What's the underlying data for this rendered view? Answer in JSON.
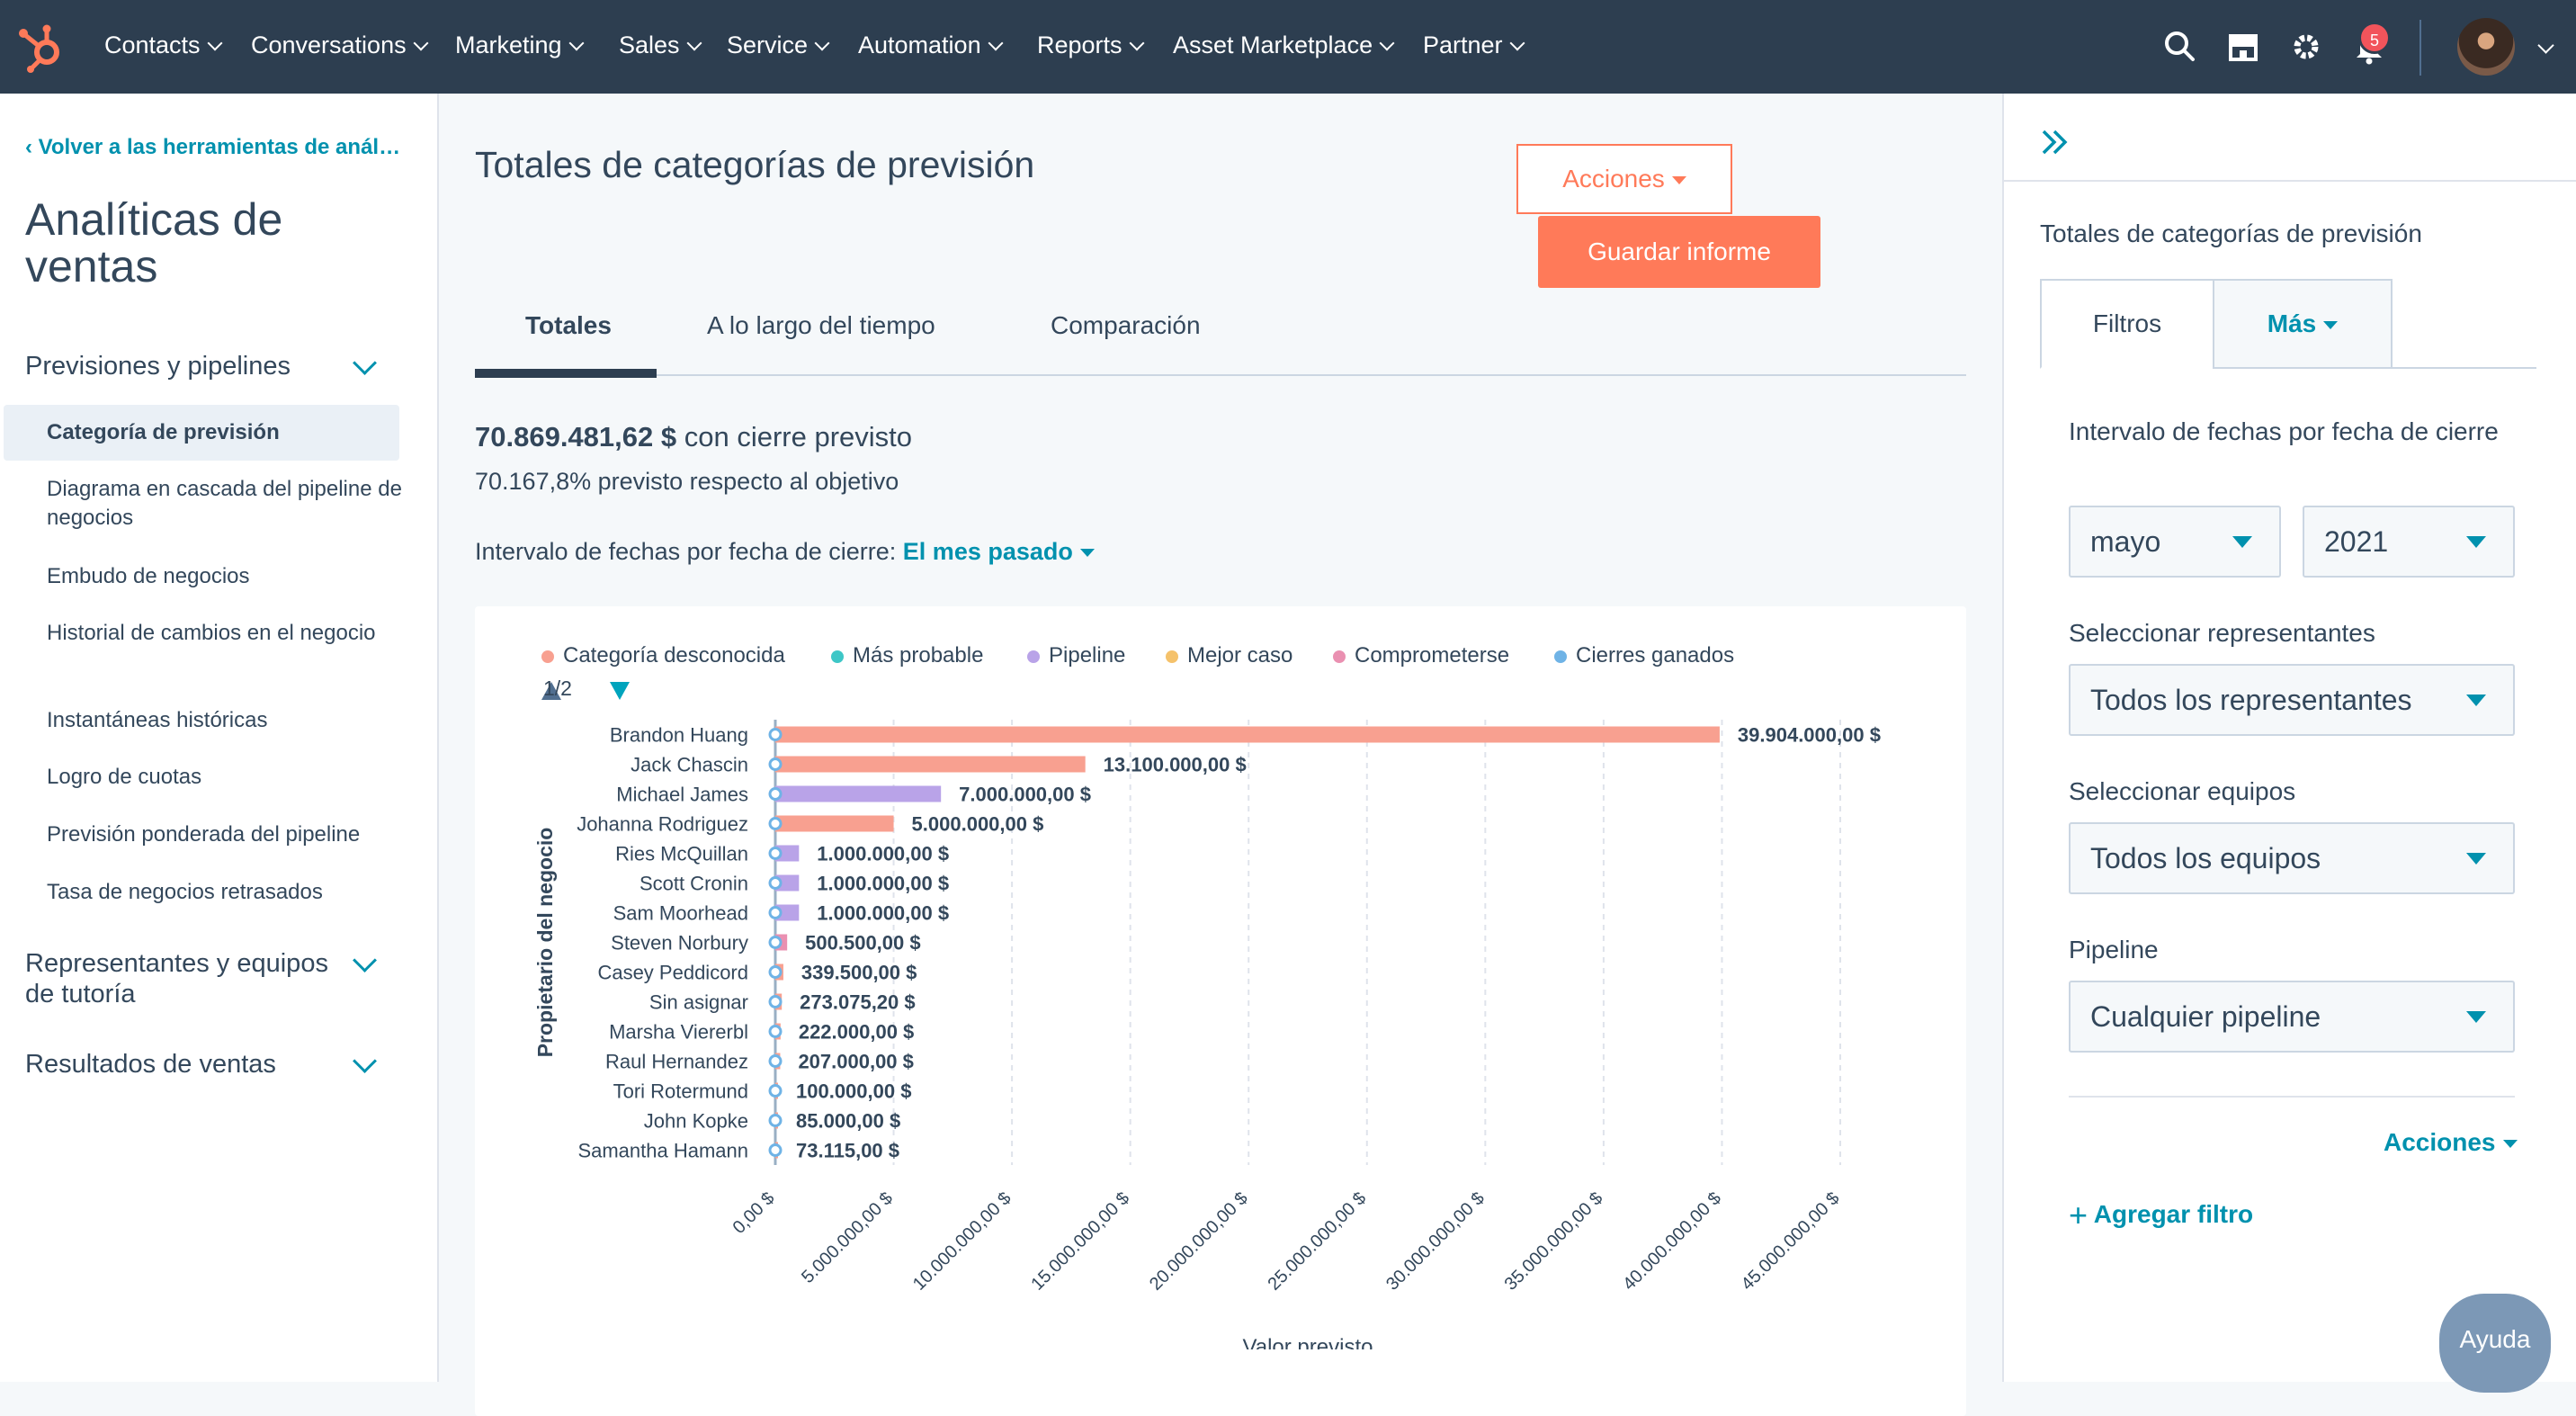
{
  "nav": {
    "items": [
      "Contacts",
      "Conversations",
      "Marketing",
      "Sales",
      "Service",
      "Automation",
      "Reports",
      "Asset Marketplace",
      "Partner"
    ],
    "notifications_count": "5",
    "icons": [
      "search-icon",
      "marketplace-icon",
      "settings-icon",
      "bell-icon"
    ]
  },
  "sidebar": {
    "back_link": "Volver a las herramientas de análisis",
    "title": "Analíticas de ventas",
    "sections": [
      {
        "label": "Previsiones y pipelines",
        "items": [
          "Categoría de previsión",
          "Diagrama en cascada del pipeline de negocios",
          "Embudo de negocios",
          "Historial de cambios en el negocio",
          "Instantáneas históricas",
          "Logro de cuotas",
          "Previsión ponderada del pipeline",
          "Tasa de negocios retrasados"
        ]
      },
      {
        "label": "Representantes y equipos de tutoría",
        "items": []
      },
      {
        "label": "Resultados de ventas",
        "items": []
      }
    ]
  },
  "main": {
    "title": "Totales de categorías de previsión",
    "actions_label": "Acciones",
    "save_label": "Guardar informe",
    "tabs": [
      "Totales",
      "A lo largo del tiempo",
      "Comparación"
    ],
    "total_amount": "70.869.481,62 $",
    "total_suffix": "con cierre previsto",
    "target_text": "70.167,8% previsto respecto al objetivo",
    "date_range_label": "Intervalo de fechas por fecha de cierre:",
    "date_range_value": "El mes pasado",
    "pager": "1/2"
  },
  "chart_data": {
    "type": "bar",
    "orientation": "horizontal",
    "legend": [
      {
        "name": "Categoría desconocida",
        "color": "#f8a090"
      },
      {
        "name": "Más probable",
        "color": "#3ec7c7"
      },
      {
        "name": "Pipeline",
        "color": "#b9a3e8"
      },
      {
        "name": "Mejor caso",
        "color": "#f5c26b"
      },
      {
        "name": "Comprometerse",
        "color": "#ea90b1"
      },
      {
        "name": "Cierres ganados",
        "color": "#6fb3e6"
      }
    ],
    "categories": [
      "Brandon Huang",
      "Jack Chascin",
      "Michael James",
      "Johanna Rodriguez",
      "Ries McQuillan",
      "Scott Cronin",
      "Sam Moorhead",
      "Steven Norbury",
      "Casey Peddicord",
      "Sin asignar",
      "Marsha Viererbl",
      "Raul Hernandez",
      "Tori Rotermund",
      "John Kopke",
      "Samantha Hamann"
    ],
    "values": [
      39904000,
      13100000,
      7000000,
      5000000,
      1000000,
      1000000,
      1000000,
      500500,
      339500,
      273075.2,
      222000,
      207000,
      100000,
      85000,
      73115
    ],
    "value_labels": [
      "39.904.000,00 $",
      "13.100.000,00 $",
      "7.000.000,00 $",
      "5.000.000,00 $",
      "1.000.000,00 $",
      "1.000.000,00 $",
      "1.000.000,00 $",
      "500.500,00 $",
      "339.500,00 $",
      "273.075,20 $",
      "222.000,00 $",
      "207.000,00 $",
      "100.000,00 $",
      "85.000,00 $",
      "73.115,00 $"
    ],
    "bar_series": [
      "Categoría desconocida",
      "Categoría desconocida",
      "Pipeline",
      "Categoría desconocida",
      "Pipeline",
      "Pipeline",
      "Pipeline",
      "Comprometerse",
      "Categoría desconocida",
      "Categoría desconocida",
      "Categoría desconocida",
      "Categoría desconocida",
      "Categoría desconocida",
      "Categoría desconocida",
      "Categoría desconocida"
    ],
    "x_ticks": [
      "0,00 $",
      "5.000.000,00 $",
      "10.000.000,00 $",
      "15.000.000,00 $",
      "20.000.000,00 $",
      "25.000.000,00 $",
      "30.000.000,00 $",
      "35.000.000,00 $",
      "40.000.000,00 $",
      "45.000.000,00 $"
    ],
    "xlim": [
      0,
      45000000
    ],
    "xlabel": "Valor previsto",
    "ylabel": "Propietario del negocio",
    "grid": "vertical"
  },
  "filters": {
    "title": "Totales de categorías de previsión",
    "tabs": [
      "Filtros",
      "Más"
    ],
    "date_label": "Intervalo de fechas por fecha de cierre",
    "month": "mayo",
    "year": "2021",
    "reps_label": "Seleccionar representantes",
    "reps_value": "Todos los representantes",
    "teams_label": "Seleccionar equipos",
    "teams_value": "Todos los equipos",
    "pipeline_label": "Pipeline",
    "pipeline_value": "Cualquier pipeline",
    "actions_label": "Acciones",
    "add_filter": "Agregar filtro"
  },
  "help": {
    "label": "Ayuda"
  }
}
